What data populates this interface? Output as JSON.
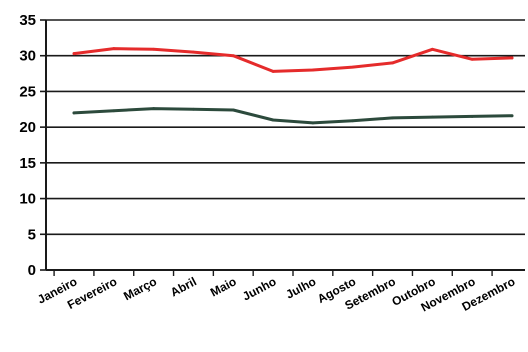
{
  "chart_data": {
    "type": "line",
    "title": "",
    "xlabel": "",
    "ylabel": "",
    "categories": [
      "Janeiro",
      "Fevereiro",
      "Março",
      "Abril",
      "Maio",
      "Junho",
      "Julho",
      "Agosto",
      "Setembro",
      "Outobro",
      "Novembro",
      "Dezembro"
    ],
    "ylim": [
      0,
      35
    ],
    "yticks": [
      0,
      5,
      10,
      15,
      20,
      25,
      30,
      35
    ],
    "grid": true,
    "legend": "none",
    "series": [
      {
        "color": "#e52b2b",
        "values": [
          30.3,
          31.0,
          30.9,
          30.5,
          30.0,
          27.8,
          28.0,
          28.4,
          29.0,
          30.9,
          29.5,
          29.7
        ]
      },
      {
        "color": "#2c4a3c",
        "values": [
          22.0,
          22.3,
          22.6,
          22.5,
          22.4,
          21.0,
          20.6,
          20.9,
          21.3,
          21.4,
          21.5,
          21.6
        ]
      }
    ]
  }
}
